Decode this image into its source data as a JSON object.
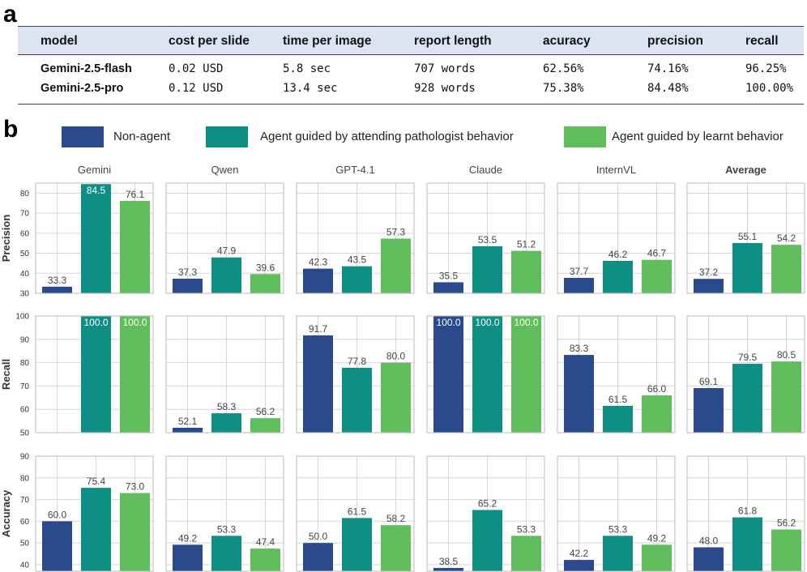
{
  "panel_labels": {
    "a": "a",
    "b": "b"
  },
  "table": {
    "headers": [
      "model",
      "cost per slide",
      "time per image",
      "report length",
      "acuracy",
      "precision",
      "recall"
    ],
    "rows": [
      {
        "model": "Gemini-2.5-flash",
        "cost": "0.02 USD",
        "time": "5.8 sec",
        "length": "707 words",
        "accuracy": "62.56%",
        "precision": "74.16%",
        "recall": "96.25%"
      },
      {
        "model": "Gemini-2.5-pro",
        "cost": "0.12 USD",
        "time": "13.4 sec",
        "length": "928 words",
        "accuracy": "75.38%",
        "precision": "84.48%",
        "recall": "100.00%"
      }
    ]
  },
  "legend": [
    {
      "label": "Non-agent",
      "color": "#2a4a8c"
    },
    {
      "label": "Agent guided by attending pathologist behavior",
      "color": "#0e8f84"
    },
    {
      "label": "Agent guided by learnt behavior",
      "color": "#5fbe5b"
    }
  ],
  "chart_data": {
    "type": "bar",
    "columns": [
      "Gemini",
      "Qwen",
      "GPT-4.1",
      "Claude",
      "InternVL",
      "Average"
    ],
    "bold_column": "Average",
    "series": [
      "Non-agent",
      "Agent guided by attending pathologist behavior",
      "Agent guided by learnt behavior"
    ],
    "rows": [
      {
        "ylabel": "Precision",
        "ylim": [
          30,
          85
        ],
        "ticks": [
          30,
          40,
          50,
          60,
          70,
          80
        ],
        "values": [
          [
            33.3,
            84.5,
            76.1
          ],
          [
            37.3,
            47.9,
            39.6
          ],
          [
            42.3,
            43.5,
            57.3
          ],
          [
            35.5,
            53.5,
            51.2
          ],
          [
            37.7,
            46.2,
            46.7
          ],
          [
            37.2,
            55.1,
            54.2
          ]
        ]
      },
      {
        "ylabel": "Recall",
        "ylim": [
          50,
          100
        ],
        "ticks": [
          50,
          60,
          70,
          80,
          90,
          100
        ],
        "values": [
          [
            null,
            100.0,
            100.0
          ],
          [
            52.1,
            58.3,
            56.2
          ],
          [
            91.7,
            77.8,
            80.0
          ],
          [
            100.0,
            100.0,
            100.0
          ],
          [
            83.3,
            61.5,
            66.0
          ],
          [
            69.1,
            79.5,
            80.5
          ]
        ]
      },
      {
        "ylabel": "Accuracy",
        "ylim": [
          37,
          90
        ],
        "ticks": [
          40,
          50,
          60,
          70,
          80,
          90
        ],
        "values": [
          [
            60.0,
            75.4,
            73.0
          ],
          [
            49.2,
            53.3,
            47.4
          ],
          [
            50.0,
            61.5,
            58.2
          ],
          [
            38.5,
            65.2,
            53.3
          ],
          [
            42.2,
            53.3,
            49.2
          ],
          [
            48.0,
            61.8,
            56.2
          ]
        ]
      }
    ]
  }
}
